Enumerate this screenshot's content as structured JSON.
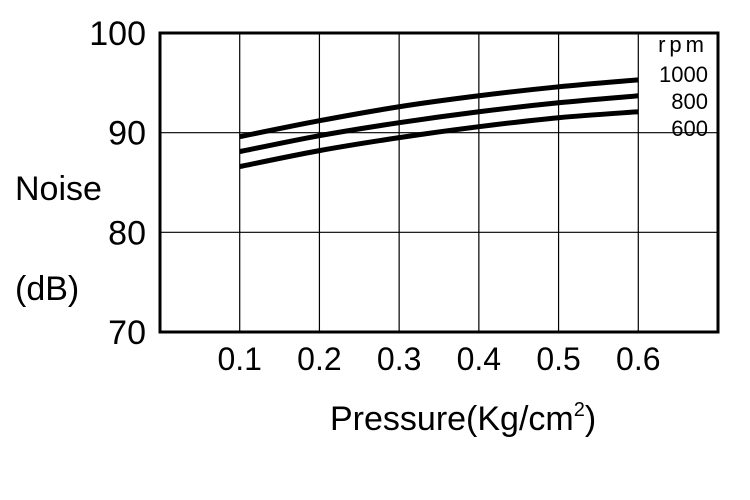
{
  "chart_data": {
    "type": "line",
    "title": "",
    "xlabel": "Pressure(Kg/cm",
    "xlabel_sup": "2",
    "xlabel_close": ")",
    "ylabel_line1": "Noise",
    "ylabel_line2": "(dB)",
    "xlim": [
      0,
      0.7
    ],
    "ylim": [
      70,
      100
    ],
    "x_ticks": [
      "0.1",
      "0.2",
      "0.3",
      "0.4",
      "0.5",
      "0.6"
    ],
    "y_ticks": [
      "70",
      "80",
      "90",
      "100"
    ],
    "grid": true,
    "legend_title": "rpm",
    "x": [
      0.1,
      0.2,
      0.3,
      0.4,
      0.5,
      0.6
    ],
    "series": [
      {
        "name": "1000",
        "values": [
          89.6,
          91.2,
          92.6,
          93.7,
          94.6,
          95.3
        ]
      },
      {
        "name": "800",
        "values": [
          88.1,
          89.7,
          91.0,
          92.1,
          93.0,
          93.7
        ]
      },
      {
        "name": "600",
        "values": [
          86.6,
          88.2,
          89.5,
          90.6,
          91.5,
          92.1
        ]
      }
    ],
    "colors": {
      "line": "#000000",
      "grid": "#000000",
      "background": "#ffffff"
    }
  }
}
